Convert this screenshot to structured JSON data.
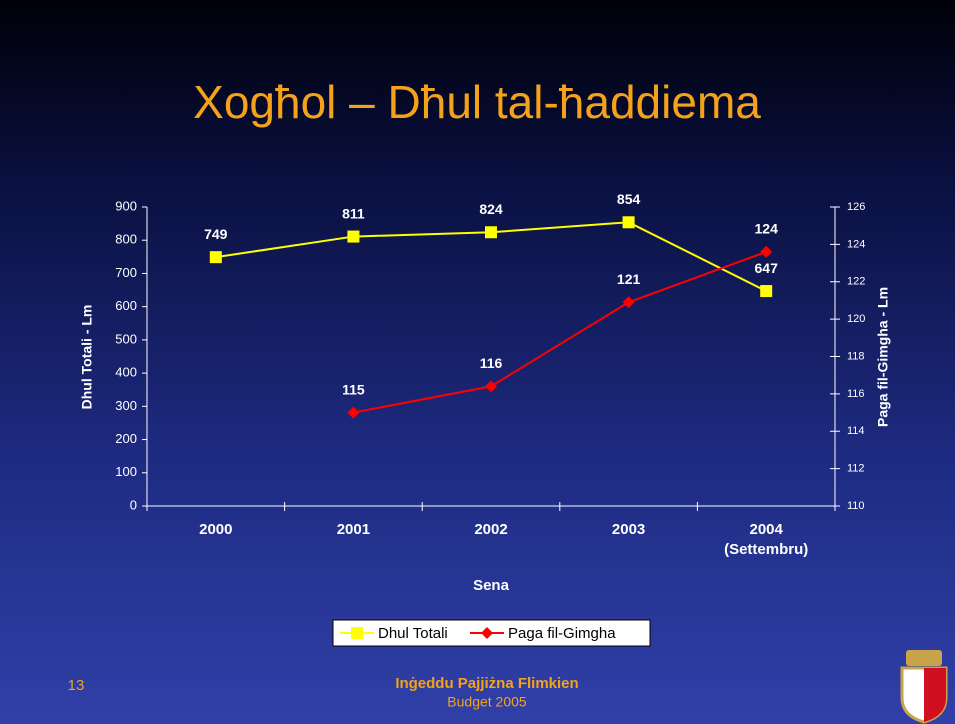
{
  "title": "Xogħol – Dħul tal-ħaddiema",
  "chart_data": {
    "type": "line",
    "categories": [
      "2000",
      "2001",
      "2002",
      "2003",
      "2004 (Settembru)"
    ],
    "xlabel": "Sena",
    "ylabel": "Dhul Totali - Lm",
    "y2label": "Paga fil-Gimgha - Lm",
    "ylim": [
      0,
      900
    ],
    "yticks": [
      0,
      100,
      200,
      300,
      400,
      500,
      600,
      700,
      800,
      900
    ],
    "y2lim": [
      110,
      126
    ],
    "y2ticks": [
      110,
      112,
      114,
      116,
      118,
      120,
      122,
      124,
      126
    ],
    "legend": "bottom",
    "series": [
      {
        "name": "Dhul Totali",
        "color": "#ffff00",
        "marker": "square",
        "values": [
          749,
          811,
          824,
          854,
          647
        ]
      },
      {
        "name": "Paga fil-Gimgha",
        "color": "#ff0000",
        "marker": "diamond",
        "axis": "y2",
        "values": [
          null,
          115,
          116.4,
          120.9,
          123.6
        ],
        "value_labels": [
          null,
          "115",
          "116",
          "121",
          "124"
        ]
      }
    ]
  },
  "footer": {
    "page": "13",
    "slogan": "Inġeddu Pajjiżna Flimkien",
    "budget": "Budget 2005"
  }
}
